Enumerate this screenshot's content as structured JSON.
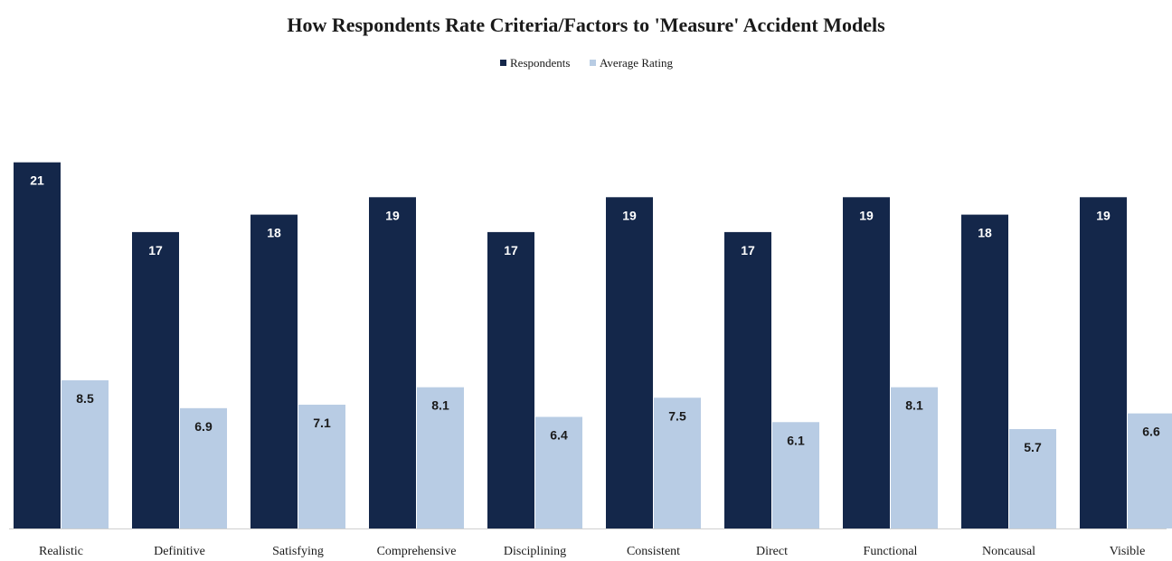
{
  "chart_data": {
    "type": "bar",
    "title": "How Respondents Rate Criteria/Factors to 'Measure' Accident Models",
    "xlabel": "",
    "ylabel": "",
    "legend_position": "top-center",
    "grid": false,
    "ylim": [
      0,
      21.5
    ],
    "categories": [
      "Realistic",
      "Definitive",
      "Satisfying",
      "Comprehensive",
      "Disciplining",
      "Consistent",
      "Direct",
      "Functional",
      "Noncausal",
      "Visible"
    ],
    "series": [
      {
        "name": "Respondents",
        "color": "#14274a",
        "label_color": "#ffffff",
        "values": [
          21,
          17,
          18,
          19,
          17,
          19,
          17,
          19,
          18,
          19
        ]
      },
      {
        "name": "Average Rating",
        "color": "#b8cce4",
        "label_color": "#1a1a1a",
        "values": [
          8.5,
          6.9,
          7.1,
          8.1,
          6.4,
          7.5,
          6.1,
          8.1,
          5.7,
          6.6
        ]
      }
    ]
  }
}
